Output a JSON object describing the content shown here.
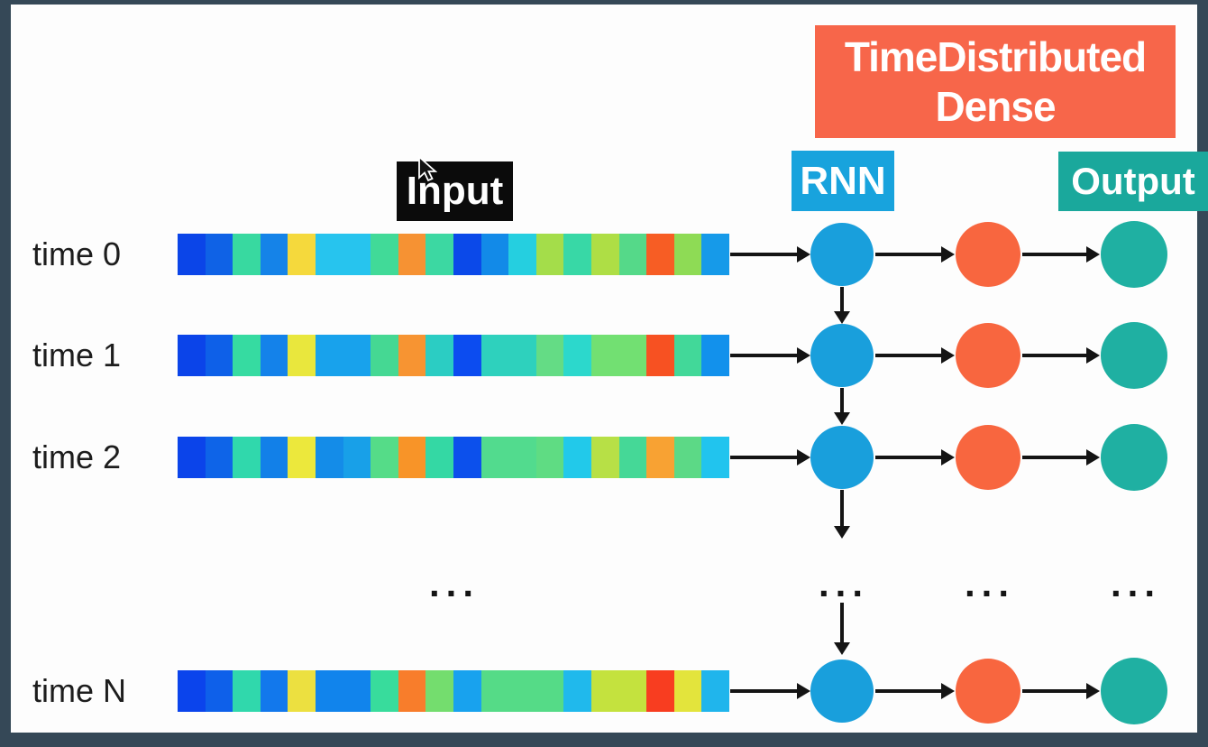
{
  "header": {
    "time_distributed_line1": "TimeDistributed",
    "time_distributed_line2": "Dense",
    "input": "Input",
    "rnn": "RNN",
    "output": "Output"
  },
  "ellipsis": "...",
  "colors": {
    "frame": "#354857",
    "canvas": "#fdfdfd",
    "input_box_bg": "#0b0b0b",
    "rnn_box_bg": "#18a3dd",
    "time_distributed_box_bg": "#f7664a",
    "output_box_bg": "#1aa89c",
    "rnn_node": "#199fdc",
    "dense_node": "#f8663f",
    "output_node": "#1fb0a2",
    "arrow": "#141414",
    "row_label_text": "#1d1d1d",
    "header_text": "#ffffff"
  },
  "rows": [
    {
      "label": "time 0",
      "strip": [
        {
          "c": "#0b45e8",
          "w": 1
        },
        {
          "c": "#0f62e6",
          "w": 1
        },
        {
          "c": "#38d9a0",
          "w": 1
        },
        {
          "c": "#1583e8",
          "w": 1
        },
        {
          "c": "#f5d93c",
          "w": 1
        },
        {
          "c": "#27c4ee",
          "w": 2
        },
        {
          "c": "#41da98",
          "w": 1
        },
        {
          "c": "#f69233",
          "w": 1
        },
        {
          "c": "#3cd8a2",
          "w": 1
        },
        {
          "c": "#0b49e9",
          "w": 1
        },
        {
          "c": "#128ae8",
          "w": 1
        },
        {
          "c": "#25cfe0",
          "w": 1
        },
        {
          "c": "#a4dd4a",
          "w": 1
        },
        {
          "c": "#38d8a6",
          "w": 1
        },
        {
          "c": "#aede45",
          "w": 1
        },
        {
          "c": "#55d989",
          "w": 1
        },
        {
          "c": "#f75d24",
          "w": 1
        },
        {
          "c": "#8edb55",
          "w": 1
        },
        {
          "c": "#169ae9",
          "w": 1
        }
      ]
    },
    {
      "label": "time 1",
      "strip": [
        {
          "c": "#0b44e9",
          "w": 1
        },
        {
          "c": "#0e60e8",
          "w": 1
        },
        {
          "c": "#36dba1",
          "w": 1
        },
        {
          "c": "#1482ea",
          "w": 1
        },
        {
          "c": "#e9e73d",
          "w": 1
        },
        {
          "c": "#18a2ec",
          "w": 2
        },
        {
          "c": "#45d893",
          "w": 1
        },
        {
          "c": "#f79432",
          "w": 1
        },
        {
          "c": "#2bcdc3",
          "w": 1
        },
        {
          "c": "#0c4cf0",
          "w": 1
        },
        {
          "c": "#2ed1bd",
          "w": 2
        },
        {
          "c": "#64dc85",
          "w": 1
        },
        {
          "c": "#2cd8cc",
          "w": 1
        },
        {
          "c": "#72e072",
          "w": 2
        },
        {
          "c": "#f75122",
          "w": 1
        },
        {
          "c": "#42d899",
          "w": 1
        },
        {
          "c": "#1291ec",
          "w": 1
        }
      ]
    },
    {
      "label": "time 2",
      "strip": [
        {
          "c": "#0b44ea",
          "w": 1
        },
        {
          "c": "#0e64e8",
          "w": 1
        },
        {
          "c": "#30d8ac",
          "w": 1
        },
        {
          "c": "#1280e8",
          "w": 1
        },
        {
          "c": "#ece83c",
          "w": 1
        },
        {
          "c": "#148ce8",
          "w": 1
        },
        {
          "c": "#18a0e8",
          "w": 1
        },
        {
          "c": "#55dc88",
          "w": 1
        },
        {
          "c": "#f89428",
          "w": 1
        },
        {
          "c": "#34d8a4",
          "w": 1
        },
        {
          "c": "#0c50ec",
          "w": 1
        },
        {
          "c": "#52db8e",
          "w": 2
        },
        {
          "c": "#5fdc83",
          "w": 1
        },
        {
          "c": "#22c9ea",
          "w": 1
        },
        {
          "c": "#b7e046",
          "w": 1
        },
        {
          "c": "#45d897",
          "w": 1
        },
        {
          "c": "#f8a233",
          "w": 1
        },
        {
          "c": "#5cd986",
          "w": 1
        },
        {
          "c": "#21c4ee",
          "w": 1
        }
      ]
    },
    {
      "label": "time N",
      "strip": [
        {
          "c": "#0b44ec",
          "w": 1
        },
        {
          "c": "#0e60ea",
          "w": 1
        },
        {
          "c": "#30d8ac",
          "w": 1
        },
        {
          "c": "#1278ec",
          "w": 1
        },
        {
          "c": "#ece040",
          "w": 1
        },
        {
          "c": "#1184ec",
          "w": 2
        },
        {
          "c": "#38dc9c",
          "w": 1
        },
        {
          "c": "#f87d2b",
          "w": 1
        },
        {
          "c": "#74dd6e",
          "w": 1
        },
        {
          "c": "#18a2ee",
          "w": 1
        },
        {
          "c": "#55db87",
          "w": 3
        },
        {
          "c": "#20b9ec",
          "w": 1
        },
        {
          "c": "#c4e23e",
          "w": 2
        },
        {
          "c": "#f83d20",
          "w": 1
        },
        {
          "c": "#e3e43c",
          "w": 1
        },
        {
          "c": "#20b5ec",
          "w": 1
        }
      ]
    }
  ]
}
